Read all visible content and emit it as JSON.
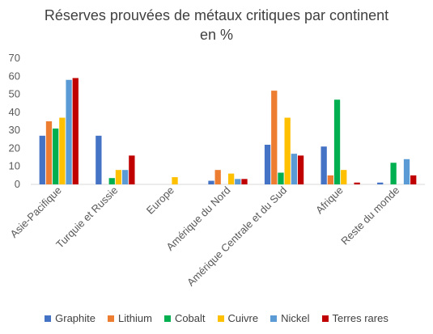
{
  "chart_data": {
    "type": "bar",
    "title": "Réserves prouvées de métaux critiques par continent",
    "subtitle": "en %",
    "categories": [
      "Asie-Pacifique",
      "Turquie et Russie",
      "Europe",
      "Amérique du Nord",
      "Amérique Centrale et du Sud",
      "Afrique",
      "Reste du monde"
    ],
    "series": [
      {
        "name": "Graphite",
        "color": "#4472C4",
        "values": [
          27,
          27,
          0,
          2,
          22,
          21,
          1
        ]
      },
      {
        "name": "Lithium",
        "color": "#ED7D31",
        "values": [
          35,
          0,
          0,
          8,
          52,
          5,
          0
        ]
      },
      {
        "name": "Cobalt",
        "color": "#00B050",
        "values": [
          31,
          3.5,
          0,
          0,
          6.5,
          47,
          12
        ]
      },
      {
        "name": "Cuivre",
        "color": "#FFC000",
        "values": [
          37,
          8,
          4,
          6,
          37,
          8,
          0
        ]
      },
      {
        "name": "Nickel",
        "color": "#5B9BD5",
        "values": [
          58,
          8,
          0,
          3,
          17,
          0,
          14
        ]
      },
      {
        "name": "Terres rares",
        "color": "#C00000",
        "values": [
          59,
          16,
          0,
          3,
          16,
          1,
          5
        ]
      }
    ],
    "ylim": [
      0,
      70
    ],
    "yticks": [
      0,
      10,
      20,
      30,
      40,
      50,
      60,
      70
    ],
    "grid": false,
    "legend_position": "bottom"
  }
}
